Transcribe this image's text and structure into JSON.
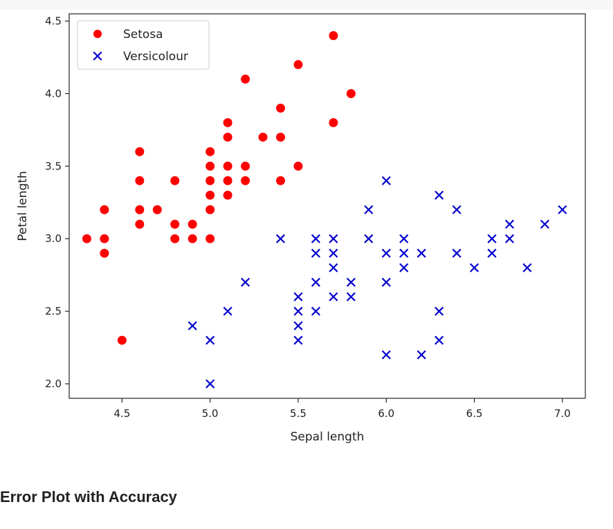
{
  "chart_data": {
    "type": "scatter",
    "title": "",
    "xlabel": "Sepal length",
    "ylabel": "Petal length",
    "xlim": [
      4.2,
      7.13
    ],
    "ylim": [
      1.9,
      4.55
    ],
    "xticks": [
      4.5,
      5.0,
      5.5,
      6.0,
      6.5,
      7.0
    ],
    "xtick_labels": [
      "4.5",
      "5.0",
      "5.5",
      "6.0",
      "6.5",
      "7.0"
    ],
    "yticks": [
      2.0,
      2.5,
      3.0,
      3.5,
      4.0,
      4.5
    ],
    "ytick_labels": [
      "2.0",
      "2.5",
      "3.0",
      "3.5",
      "4.0",
      "4.5"
    ],
    "legend_position": "top-left",
    "series": [
      {
        "name": "Setosa",
        "marker": "circle",
        "color": "#ff0000",
        "points": [
          [
            4.3,
            3.0
          ],
          [
            4.4,
            3.2
          ],
          [
            4.4,
            3.0
          ],
          [
            4.4,
            2.9
          ],
          [
            4.5,
            2.3
          ],
          [
            4.6,
            3.6
          ],
          [
            4.6,
            3.4
          ],
          [
            4.6,
            3.2
          ],
          [
            4.6,
            3.1
          ],
          [
            4.7,
            3.2
          ],
          [
            4.8,
            3.4
          ],
          [
            4.8,
            3.1
          ],
          [
            4.8,
            3.0
          ],
          [
            4.9,
            3.1
          ],
          [
            4.9,
            3.0
          ],
          [
            5.0,
            3.6
          ],
          [
            5.0,
            3.5
          ],
          [
            5.0,
            3.4
          ],
          [
            5.0,
            3.3
          ],
          [
            5.0,
            3.2
          ],
          [
            5.0,
            3.0
          ],
          [
            5.1,
            3.8
          ],
          [
            5.1,
            3.7
          ],
          [
            5.1,
            3.5
          ],
          [
            5.1,
            3.4
          ],
          [
            5.1,
            3.3
          ],
          [
            5.2,
            4.1
          ],
          [
            5.2,
            3.5
          ],
          [
            5.2,
            3.4
          ],
          [
            5.3,
            3.7
          ],
          [
            5.4,
            3.9
          ],
          [
            5.4,
            3.7
          ],
          [
            5.4,
            3.4
          ],
          [
            5.5,
            4.2
          ],
          [
            5.5,
            3.5
          ],
          [
            5.7,
            4.4
          ],
          [
            5.7,
            3.8
          ],
          [
            5.8,
            4.0
          ]
        ]
      },
      {
        "name": "Versicolour",
        "marker": "x",
        "color": "#0000cc",
        "points": [
          [
            4.9,
            2.4
          ],
          [
            5.0,
            2.3
          ],
          [
            5.0,
            2.0
          ],
          [
            5.1,
            2.5
          ],
          [
            5.2,
            2.7
          ],
          [
            5.4,
            3.0
          ],
          [
            5.5,
            2.6
          ],
          [
            5.5,
            2.5
          ],
          [
            5.5,
            2.4
          ],
          [
            5.5,
            2.3
          ],
          [
            5.6,
            3.0
          ],
          [
            5.6,
            2.9
          ],
          [
            5.6,
            2.7
          ],
          [
            5.6,
            2.5
          ],
          [
            5.7,
            3.0
          ],
          [
            5.7,
            2.9
          ],
          [
            5.7,
            2.8
          ],
          [
            5.7,
            2.6
          ],
          [
            5.8,
            2.7
          ],
          [
            5.8,
            2.6
          ],
          [
            5.9,
            3.2
          ],
          [
            5.9,
            3.0
          ],
          [
            6.0,
            3.4
          ],
          [
            6.0,
            2.9
          ],
          [
            6.0,
            2.7
          ],
          [
            6.0,
            2.2
          ],
          [
            6.1,
            3.0
          ],
          [
            6.1,
            2.9
          ],
          [
            6.1,
            2.8
          ],
          [
            6.2,
            2.9
          ],
          [
            6.2,
            2.2
          ],
          [
            6.3,
            3.3
          ],
          [
            6.3,
            2.5
          ],
          [
            6.3,
            2.3
          ],
          [
            6.4,
            3.2
          ],
          [
            6.4,
            2.9
          ],
          [
            6.5,
            2.8
          ],
          [
            6.6,
            3.0
          ],
          [
            6.6,
            2.9
          ],
          [
            6.7,
            3.1
          ],
          [
            6.7,
            3.0
          ],
          [
            6.8,
            2.8
          ],
          [
            6.9,
            3.1
          ],
          [
            7.0,
            3.2
          ]
        ]
      }
    ]
  },
  "page": {
    "heading": "Error Plot with Accuracy"
  }
}
